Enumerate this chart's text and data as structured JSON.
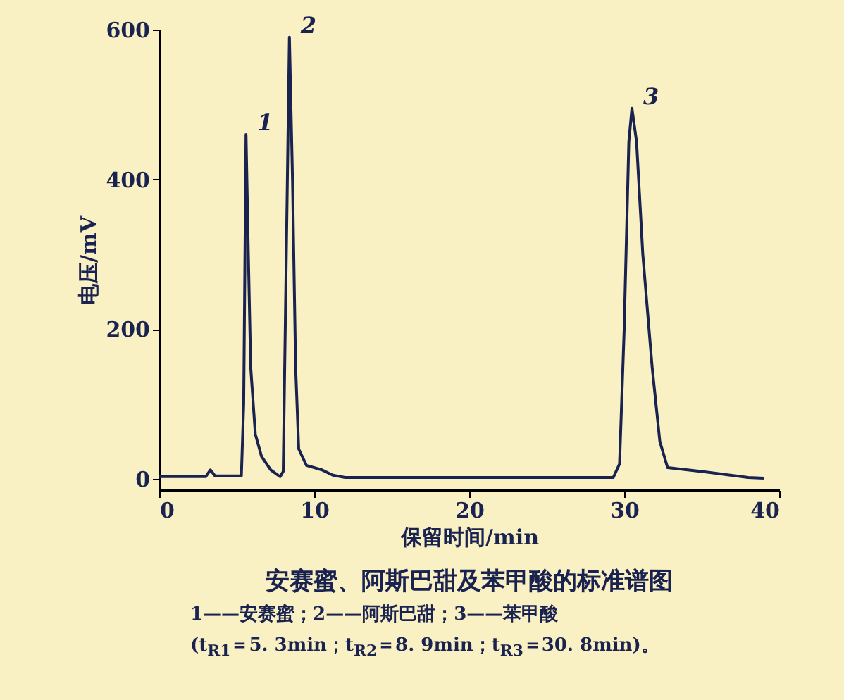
{
  "chart_data": {
    "type": "line",
    "title": "安赛蜜、阿斯巴甜及苯甲酸的标准谱图",
    "xlabel": "保留时间/min",
    "ylabel": "电压/mV",
    "x": [
      0,
      3,
      3.3,
      3.6,
      5.3,
      5.45,
      5.6,
      5.75,
      5.9,
      6.2,
      6.6,
      7.2,
      7.8,
      8.0,
      8.2,
      8.4,
      8.6,
      8.8,
      9.0,
      9.5,
      10.5,
      11.2,
      12,
      20,
      29.3,
      29.7,
      30.0,
      30.3,
      30.5,
      30.8,
      31.2,
      31.8,
      32.3,
      32.8,
      35,
      36.5,
      38,
      39
    ],
    "series": [
      {
        "color": "#1a2350",
        "values": [
          3,
          3,
          12,
          4,
          4,
          100,
          460,
          300,
          150,
          60,
          30,
          12,
          3,
          10,
          300,
          590,
          400,
          150,
          40,
          18,
          12,
          5,
          2,
          2,
          2,
          20,
          200,
          450,
          495,
          450,
          300,
          150,
          50,
          15,
          10,
          6,
          2,
          1
        ]
      }
    ],
    "xlim": [
      0,
      40
    ],
    "xticks": [
      0,
      10,
      20,
      30,
      40
    ],
    "ylim": [
      -15,
      600
    ],
    "yticks": [
      0,
      200,
      400,
      600
    ],
    "grid": false,
    "legend": false,
    "marker": "none",
    "line_style": "solid",
    "annotations": [
      {
        "text": "1",
        "x": 5.6,
        "y": 460
      },
      {
        "text": "2",
        "x": 8.4,
        "y": 590
      },
      {
        "text": "3",
        "x": 30.5,
        "y": 495
      },
      "1——安赛蜜；2——阿斯巴甜；3——苯甲酸",
      "(t$_{R1}$＝5. 3min；t$_{R2}$＝8. 9min；t$_{R3}$＝30. 8min)。"
    ]
  }
}
